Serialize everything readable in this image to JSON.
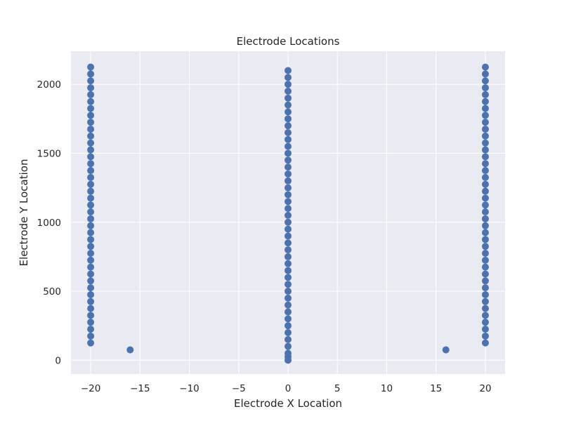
{
  "chart_data": {
    "type": "scatter",
    "title": "Electrode Locations",
    "xlabel": "Electrode X Location",
    "ylabel": "Electrode Y Location",
    "xlim": [
      -22,
      22
    ],
    "ylim": [
      -100,
      2240
    ],
    "xticks": [
      -20,
      -15,
      -10,
      -5,
      0,
      5,
      10,
      15,
      20
    ],
    "xtick_labels": [
      "−20",
      "−15",
      "−10",
      "−5",
      "0",
      "5",
      "10",
      "15",
      "20"
    ],
    "yticks": [
      0,
      500,
      1000,
      1500,
      2000
    ],
    "ytick_labels": [
      "0",
      "500",
      "1000",
      "1500",
      "2000"
    ],
    "grid": true,
    "marker_color": "#4c72b0",
    "background": "#eaeaf2",
    "columns": [
      {
        "x": -20,
        "y_start": 125,
        "y_end": 2125,
        "y_step": 50
      },
      {
        "x": 0,
        "y_start": 0,
        "y_end": 2100,
        "y_step": 50
      },
      {
        "x": 20,
        "y_start": 125,
        "y_end": 2125,
        "y_step": 50
      }
    ],
    "extra_points": [
      {
        "x": 0,
        "y": 25
      },
      {
        "x": -16,
        "y": 75
      },
      {
        "x": 16,
        "y": 75
      }
    ]
  }
}
